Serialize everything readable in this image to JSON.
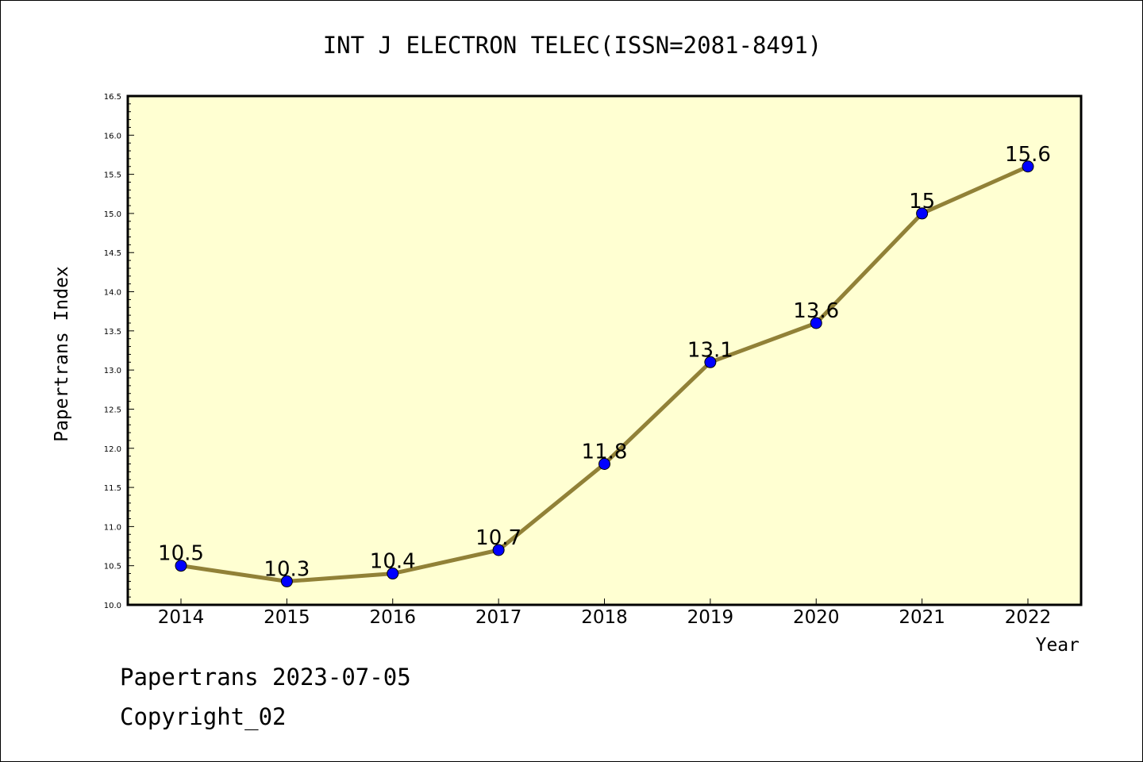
{
  "chart_data": {
    "type": "line",
    "title": "INT J ELECTRON TELEC(ISSN=2081-8491)",
    "xlabel": "Year",
    "ylabel": "Papertrans Index",
    "categories": [
      "2014",
      "2015",
      "2016",
      "2017",
      "2018",
      "2019",
      "2020",
      "2021",
      "2022"
    ],
    "series": [
      {
        "values": [
          10.5,
          10.3,
          10.4,
          10.7,
          11.8,
          13.1,
          13.6,
          15.0,
          15.6
        ],
        "labels": [
          "10.5",
          "10.3",
          "10.4",
          "10.7",
          "11.8",
          "13.1",
          "13.6",
          "15",
          "15.6"
        ]
      }
    ],
    "ylim": [
      10.0,
      16.5
    ],
    "yticks": [
      "10.0",
      "10.5",
      "11.0",
      "11.5",
      "12.0",
      "12.5",
      "13.0",
      "13.5",
      "14.0",
      "14.5",
      "15.0",
      "15.5",
      "16.0",
      "16.5"
    ],
    "grid": false,
    "legend": "none",
    "colors": {
      "plot_background": "#ffffd2",
      "line": "#918137",
      "marker": "#0000ff",
      "frame": "#000000"
    }
  },
  "footer": {
    "line1": "Papertrans 2023-07-05",
    "line2": "Copyright_02"
  }
}
